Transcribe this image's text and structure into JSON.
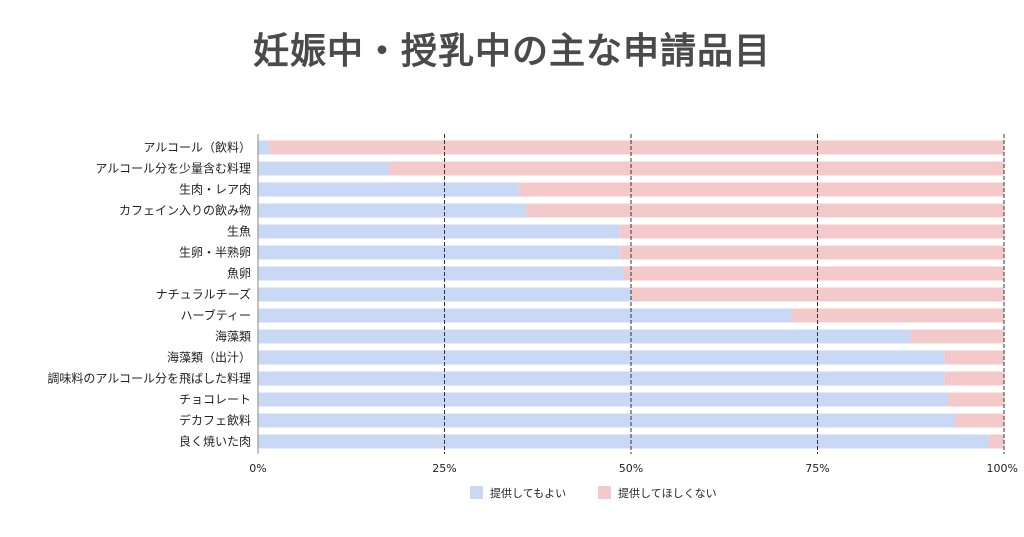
{
  "page": {
    "title": "妊娠中・授乳中の主な申請品目"
  },
  "chart_data": {
    "type": "bar",
    "orientation": "horizontal",
    "stacked": "percent",
    "title": "妊娠中・授乳中の主な申請品目",
    "xlabel": "",
    "ylabel": "",
    "xlim": [
      0,
      100
    ],
    "x_ticks": [
      "0%",
      "25%",
      "50%",
      "75%",
      "100%"
    ],
    "grid": "vertical dashed at 25% intervals",
    "legend_position": "bottom",
    "categories": [
      "アルコール（飲料）",
      "アルコール分を少量含む料理",
      "生肉・レア肉",
      "カフェイン入りの飲み物",
      "生魚",
      "生卵・半熟卵",
      "魚卵",
      "ナチュラルチーズ",
      "ハーブティー",
      "海藻類",
      "海藻類（出汁）",
      "調味料のアルコール分を飛ばした料理",
      "チョコレート",
      "デカフェ飲料",
      "良く焼いた肉"
    ],
    "series": [
      {
        "name": "提供してもよい",
        "color": "#c9d9f5",
        "values": [
          1.5,
          17.5,
          35,
          36,
          48.5,
          48.5,
          49,
          50,
          71.5,
          87.5,
          92,
          92,
          92.5,
          93.5,
          98
        ]
      },
      {
        "name": "提供してほしくない",
        "color": "#f4c9ca",
        "values": [
          98.5,
          82.5,
          65,
          64,
          51.5,
          51.5,
          51,
          50,
          28.5,
          12.5,
          8,
          8,
          7.5,
          6.5,
          2
        ]
      }
    ]
  }
}
